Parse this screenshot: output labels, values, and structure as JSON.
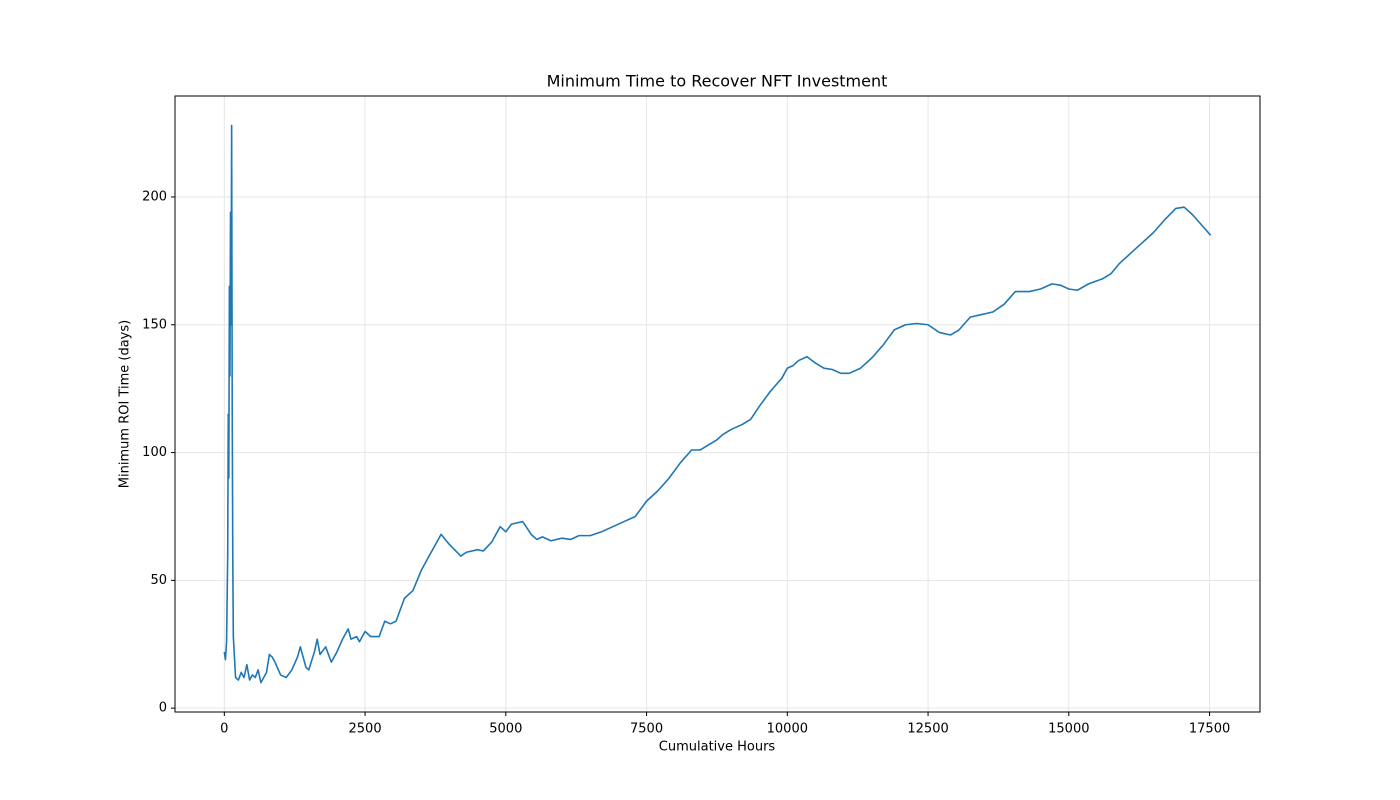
{
  "chart_data": {
    "type": "line",
    "title": "Minimum Time to Recover NFT Investment",
    "xlabel": "Cumulative Hours",
    "ylabel": "Minimum ROI Time (days)",
    "color": "#1f77b4",
    "grid": true,
    "xlim": [
      -876,
      18396
    ],
    "ylim": [
      -1.5,
      239.5
    ],
    "xticks": [
      0,
      2500,
      5000,
      7500,
      10000,
      12500,
      15000,
      17500
    ],
    "yticks": [
      0,
      50,
      100,
      150,
      200
    ],
    "x": [
      0,
      20,
      40,
      60,
      70,
      80,
      90,
      100,
      110,
      120,
      130,
      140,
      150,
      160,
      180,
      200,
      250,
      300,
      350,
      400,
      450,
      500,
      550,
      600,
      650,
      700,
      750,
      800,
      850,
      900,
      1000,
      1100,
      1200,
      1300,
      1350,
      1450,
      1500,
      1600,
      1650,
      1700,
      1800,
      1900,
      2000,
      2100,
      2200,
      2250,
      2350,
      2400,
      2500,
      2600,
      2750,
      2850,
      2950,
      3050,
      3200,
      3350,
      3500,
      3650,
      3750,
      3850,
      4000,
      4200,
      4300,
      4500,
      4600,
      4750,
      4900,
      5000,
      5100,
      5200,
      5300,
      5450,
      5550,
      5650,
      5800,
      6000,
      6150,
      6300,
      6500,
      6700,
      6900,
      7100,
      7300,
      7500,
      7700,
      7900,
      8100,
      8300,
      8450,
      8600,
      8750,
      8850,
      9000,
      9200,
      9350,
      9500,
      9700,
      9900,
      10000,
      10100,
      10200,
      10350,
      10500,
      10650,
      10800,
      10950,
      11100,
      11300,
      11500,
      11700,
      11900,
      12100,
      12300,
      12500,
      12700,
      12900,
      13050,
      13250,
      13450,
      13650,
      13850,
      14050,
      14300,
      14500,
      14700,
      14850,
      15000,
      15150,
      15350,
      15600,
      15750,
      15900,
      16100,
      16300,
      16500,
      16700,
      16900,
      17050,
      17200,
      17400,
      17520
    ],
    "values": [
      22,
      19,
      26,
      60,
      115,
      90,
      165,
      130,
      194,
      150,
      228,
      120,
      60,
      28,
      20,
      12,
      11,
      14,
      12,
      17,
      11,
      13,
      12,
      15,
      10,
      12,
      14,
      21,
      20,
      18,
      13,
      12,
      15,
      20,
      24,
      16,
      15,
      22,
      27,
      21,
      24,
      18,
      22,
      27,
      31,
      27,
      28,
      26,
      30,
      28,
      28,
      34,
      33,
      34,
      43,
      46,
      54,
      60,
      64,
      68,
      64,
      59.5,
      61,
      62,
      61.5,
      65,
      71,
      69,
      72,
      72.5,
      73,
      68,
      66,
      67,
      65.5,
      66.5,
      66,
      67.5,
      67.5,
      69,
      71,
      73,
      75,
      81,
      85,
      90,
      96,
      101,
      101,
      103,
      105,
      107,
      109,
      111,
      113,
      118,
      124,
      129,
      133,
      134,
      136,
      137.5,
      135,
      133,
      132.5,
      131,
      131,
      133,
      137,
      142,
      148,
      150,
      150.5,
      150,
      147,
      146,
      148,
      153,
      154,
      155,
      158,
      163,
      163,
      164,
      166,
      165.5,
      164,
      163.5,
      166,
      168,
      170,
      174,
      178,
      182,
      186,
      191,
      195.5,
      196,
      193,
      188,
      185
    ]
  }
}
